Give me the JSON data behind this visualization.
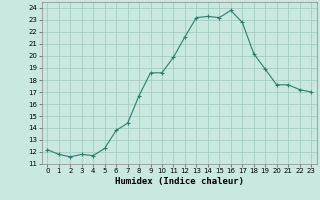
{
  "x": [
    0,
    1,
    2,
    3,
    4,
    5,
    6,
    7,
    8,
    9,
    10,
    11,
    12,
    13,
    14,
    15,
    16,
    17,
    18,
    19,
    20,
    21,
    22,
    23
  ],
  "y": [
    12.2,
    11.8,
    11.6,
    11.8,
    11.7,
    12.3,
    13.8,
    14.4,
    16.7,
    18.6,
    18.6,
    19.9,
    21.6,
    23.2,
    23.3,
    23.2,
    23.8,
    22.8,
    20.2,
    18.9,
    17.6,
    17.6,
    17.2,
    17.0
  ],
  "line_color": "#2e7d6e",
  "marker": "+",
  "marker_size": 3,
  "bg_color": "#c8e8e0",
  "grid_color": "#9dc8c0",
  "xlabel": "Humidex (Indice chaleur)",
  "xlim": [
    -0.5,
    23.5
  ],
  "ylim": [
    11,
    24.5
  ],
  "yticks": [
    11,
    12,
    13,
    14,
    15,
    16,
    17,
    18,
    19,
    20,
    21,
    22,
    23,
    24
  ],
  "xticks": [
    0,
    1,
    2,
    3,
    4,
    5,
    6,
    7,
    8,
    9,
    10,
    11,
    12,
    13,
    14,
    15,
    16,
    17,
    18,
    19,
    20,
    21,
    22,
    23
  ],
  "tick_fontsize": 5,
  "label_fontsize": 6.5,
  "linewidth": 0.8,
  "spine_color": "#888888"
}
